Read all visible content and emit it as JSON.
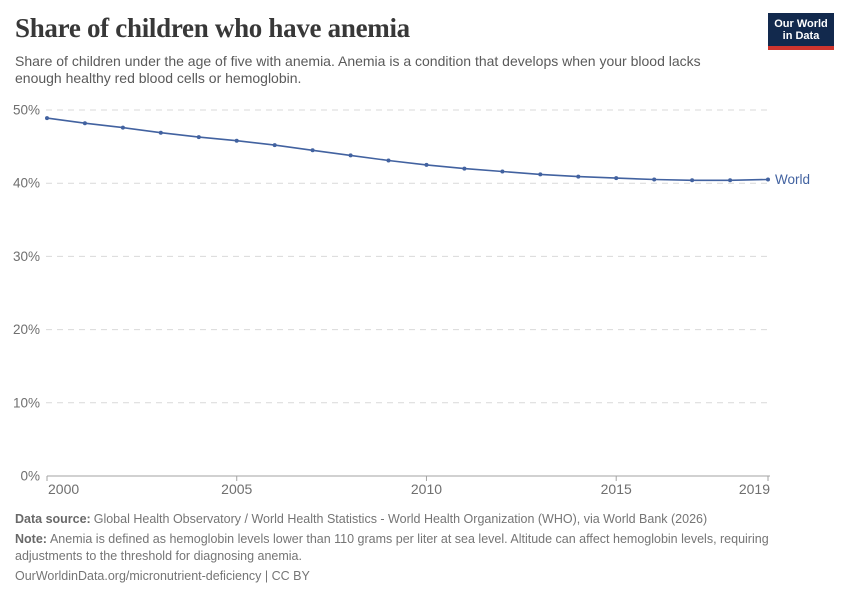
{
  "header": {
    "title": "Share of children who have anemia",
    "logo": {
      "line1": "Our World",
      "line2": "in Data",
      "bg_color": "#12294d",
      "accent_color": "#cf352e"
    }
  },
  "subtitle": "Share of children under the age of five with anemia. Anemia is a condition that develops when your blood lacks enough healthy red blood cells or hemoglobin.",
  "chart_data": {
    "type": "line",
    "title": "Share of children who have anemia",
    "x": [
      2000,
      2001,
      2002,
      2003,
      2004,
      2005,
      2006,
      2007,
      2008,
      2009,
      2010,
      2011,
      2012,
      2013,
      2014,
      2015,
      2016,
      2017,
      2018,
      2019
    ],
    "series": [
      {
        "name": "World",
        "color": "#4262a0",
        "values": [
          48.9,
          48.2,
          47.6,
          46.9,
          46.3,
          45.8,
          45.2,
          44.5,
          43.8,
          43.1,
          42.5,
          42.0,
          41.6,
          41.2,
          40.9,
          40.7,
          40.5,
          40.4,
          40.4,
          40.5
        ]
      }
    ],
    "xlabel": "",
    "ylabel": "",
    "ylim": [
      0,
      50
    ],
    "yticks": [
      0,
      10,
      20,
      30,
      40,
      50
    ],
    "ytick_suffix": "%",
    "xticks": [
      2000,
      2005,
      2010,
      2015,
      2019
    ],
    "grid": "horizontal-dashed",
    "legend_position": "end-of-line-label",
    "axis_color": "#a3a3a3",
    "grid_color": "#d9d9d9",
    "tick_label_color": "#6f6f6f"
  },
  "footer": {
    "data_source_label": "Data source:",
    "data_source": "Global Health Observatory / World Health Statistics - World Health Organization (WHO), via World Bank (2026)",
    "note_label": "Note:",
    "note": "Anemia is defined as hemoglobin levels lower than 110 grams per liter at sea level. Altitude can affect hemoglobin levels, requiring adjustments to the threshold for diagnosing anemia.",
    "link": "OurWorldinData.org/micronutrient-deficiency | CC BY"
  }
}
